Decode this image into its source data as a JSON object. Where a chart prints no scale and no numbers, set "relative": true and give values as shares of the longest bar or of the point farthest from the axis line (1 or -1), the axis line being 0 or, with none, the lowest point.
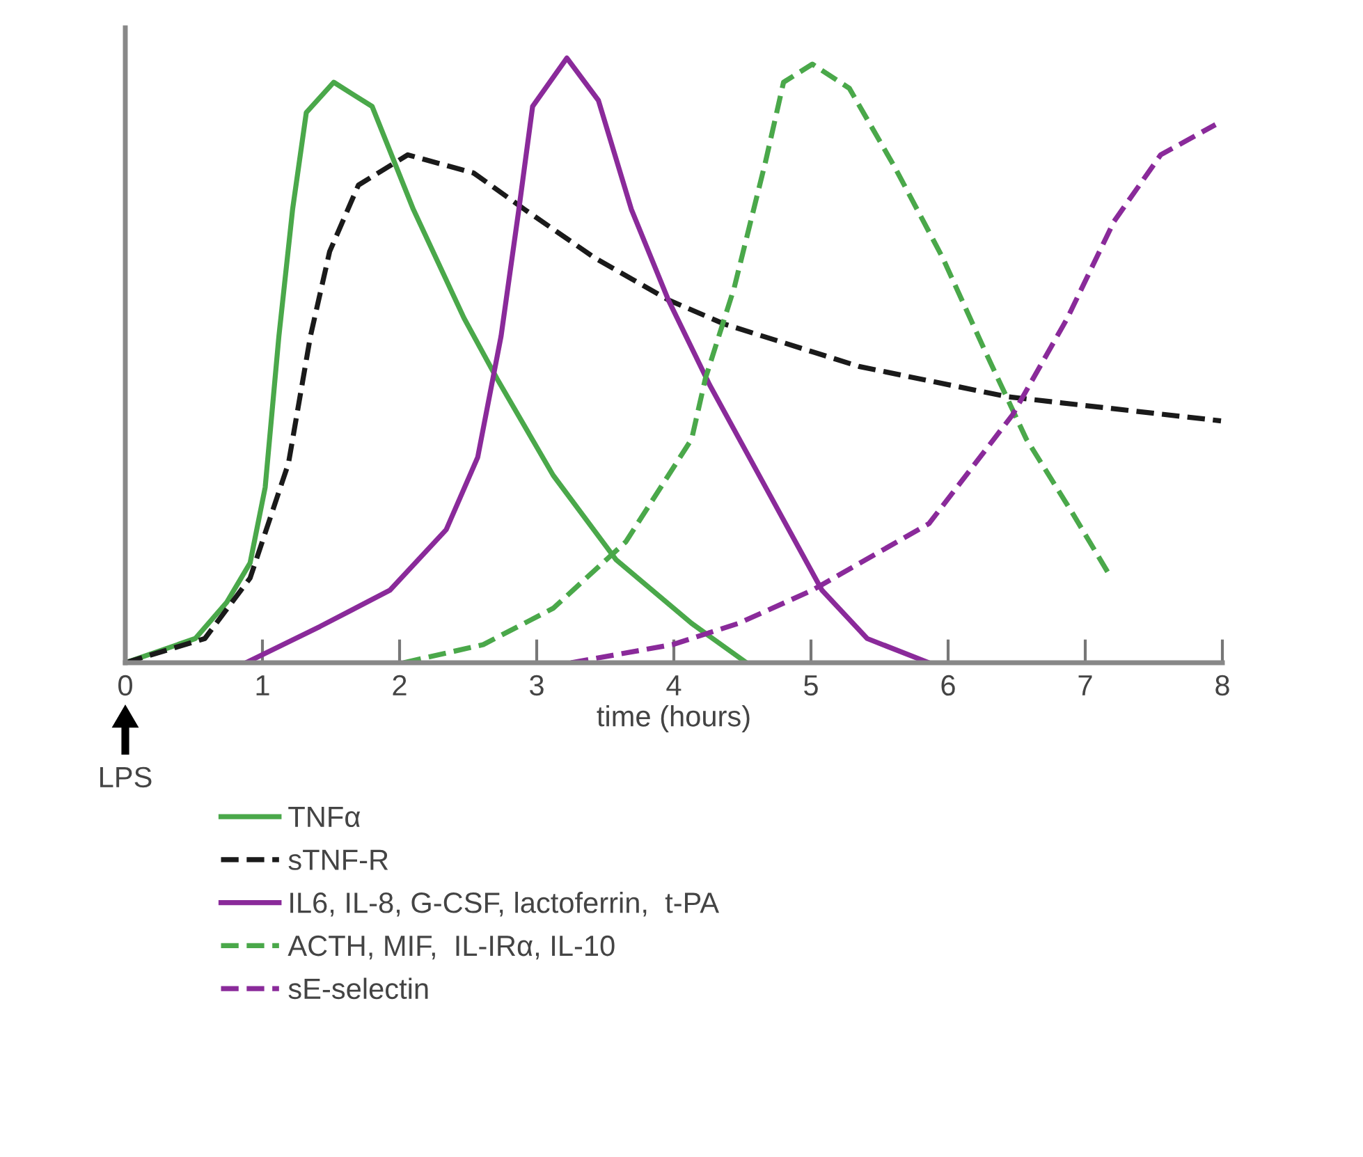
{
  "chart_data": {
    "type": "line",
    "relative": true,
    "xlabel": "time (hours)",
    "xlim": [
      0,
      8
    ],
    "xticks": [
      0,
      1,
      2,
      3,
      4,
      5,
      6,
      7,
      8
    ],
    "grid": false,
    "legend": "bottom left",
    "marker": "none",
    "annotations": [
      "LPS"
    ],
    "series": [
      {
        "name": "TNFα",
        "color": "#4aa84a",
        "line_style": "solid",
        "x": [
          0,
          0.51,
          0.74,
          0.91,
          1.02,
          1.12,
          1.22,
          1.32,
          1.52,
          1.8,
          2.1,
          2.47,
          2.71,
          3.12,
          3.58,
          4.13,
          4.53
        ],
        "values": [
          0,
          0.04,
          0.1,
          0.165,
          0.29,
          0.54,
          0.75,
          0.91,
          0.96,
          0.92,
          0.75,
          0.57,
          0.47,
          0.31,
          0.17,
          0.065,
          0
        ]
      },
      {
        "name": "sTNF-R",
        "color": "#1a1a1a",
        "line_style": "dashed",
        "x": [
          0,
          0.58,
          0.91,
          1.19,
          1.35,
          1.49,
          1.7,
          2.06,
          2.54,
          2.91,
          3.42,
          3.96,
          4.37,
          5.35,
          6.43,
          7.99
        ],
        "values": [
          0,
          0.04,
          0.14,
          0.33,
          0.54,
          0.68,
          0.79,
          0.84,
          0.81,
          0.75,
          0.67,
          0.6,
          0.56,
          0.49,
          0.44,
          0.4
        ]
      },
      {
        "name": "IL6, IL-8, G-CSF, lactoferrin,  t-PA",
        "color": "#8a2a9a",
        "line_style": "solid",
        "x": [
          0.88,
          1.42,
          1.93,
          2.34,
          2.57,
          2.74,
          2.87,
          2.97,
          3.22,
          3.45,
          3.69,
          3.96,
          4.26,
          4.67,
          5.08,
          5.41,
          5.86
        ],
        "values": [
          0,
          0.06,
          0.12,
          0.22,
          0.34,
          0.54,
          0.75,
          0.92,
          1.0,
          0.93,
          0.75,
          0.6,
          0.46,
          0.29,
          0.12,
          0.04,
          0
        ]
      },
      {
        "name": "ACTH, MIF,  IL-IRα, IL-10",
        "color": "#4aa84a",
        "line_style": "dashed",
        "x": [
          2.03,
          2.61,
          3.12,
          3.65,
          4.13,
          4.23,
          4.44,
          4.67,
          4.8,
          5.01,
          5.28,
          5.61,
          5.96,
          6.26,
          6.57,
          6.9,
          7.19
        ],
        "values": [
          0,
          0.03,
          0.09,
          0.2,
          0.37,
          0.47,
          0.62,
          0.83,
          0.96,
          0.99,
          0.95,
          0.82,
          0.67,
          0.52,
          0.37,
          0.25,
          0.14
        ]
      },
      {
        "name": "sE-selectin",
        "color": "#8a2a9a",
        "line_style": "dashed",
        "x": [
          3.25,
          3.99,
          4.47,
          5.01,
          5.86,
          6.47,
          6.87,
          7.21,
          7.55,
          7.95
        ],
        "values": [
          0,
          0.03,
          0.065,
          0.12,
          0.23,
          0.41,
          0.57,
          0.73,
          0.84,
          0.89
        ]
      }
    ]
  }
}
